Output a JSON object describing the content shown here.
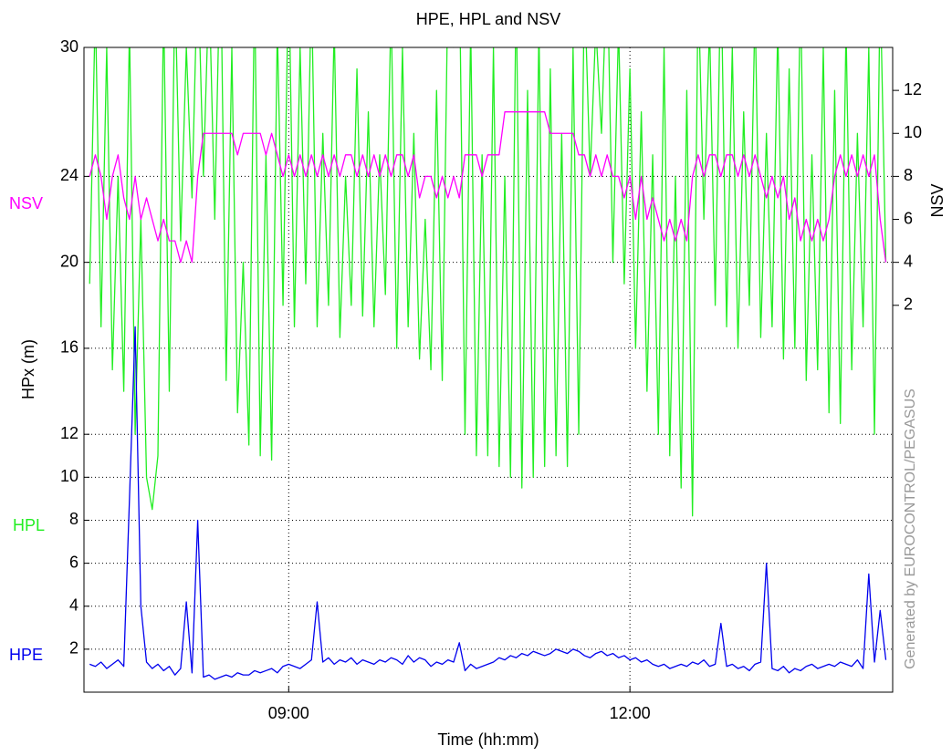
{
  "chart_data": {
    "type": "line",
    "title": "HPE, HPL and NSV",
    "xlabel": "Time (hh:mm)",
    "ylabel": "HPx  (m)",
    "y2label": "NSV",
    "annotation": "Generated by EUROCONTROL/PEGASUS",
    "xlim": [
      7.2,
      14.31
    ],
    "xticks": [
      {
        "value": 9,
        "label": "09:00"
      },
      {
        "value": 12,
        "label": "12:00"
      }
    ],
    "ylim": [
      0,
      30
    ],
    "yticks": [
      2,
      4,
      6,
      8,
      10,
      12,
      16,
      20,
      24,
      30
    ],
    "y2lim": [
      -16,
      14
    ],
    "y2ticks": [
      2,
      4,
      6,
      8,
      10,
      12
    ],
    "grid": true,
    "x": [
      7.25,
      7.3,
      7.35,
      7.4,
      7.45,
      7.5,
      7.55,
      7.6,
      7.65,
      7.7,
      7.75,
      7.8,
      7.85,
      7.9,
      7.95,
      8.0,
      8.05,
      8.1,
      8.15,
      8.2,
      8.25,
      8.3,
      8.35,
      8.4,
      8.45,
      8.5,
      8.55,
      8.6,
      8.65,
      8.7,
      8.75,
      8.8,
      8.85,
      8.9,
      8.95,
      9.0,
      9.05,
      9.1,
      9.15,
      9.2,
      9.25,
      9.3,
      9.35,
      9.4,
      9.45,
      9.5,
      9.55,
      9.6,
      9.65,
      9.7,
      9.75,
      9.8,
      9.85,
      9.9,
      9.95,
      10.0,
      10.05,
      10.1,
      10.15,
      10.2,
      10.25,
      10.3,
      10.35,
      10.4,
      10.45,
      10.5,
      10.55,
      10.6,
      10.65,
      10.7,
      10.75,
      10.8,
      10.85,
      10.9,
      10.95,
      11.0,
      11.05,
      11.1,
      11.15,
      11.2,
      11.25,
      11.3,
      11.35,
      11.4,
      11.45,
      11.5,
      11.55,
      11.6,
      11.65,
      11.7,
      11.75,
      11.8,
      11.85,
      11.9,
      11.95,
      12.0,
      12.05,
      12.1,
      12.15,
      12.2,
      12.25,
      12.3,
      12.35,
      12.4,
      12.45,
      12.5,
      12.55,
      12.6,
      12.65,
      12.7,
      12.75,
      12.8,
      12.85,
      12.9,
      12.95,
      13.0,
      13.05,
      13.1,
      13.15,
      13.2,
      13.25,
      13.3,
      13.35,
      13.4,
      13.45,
      13.5,
      13.55,
      13.6,
      13.65,
      13.7,
      13.75,
      13.8,
      13.85,
      13.9,
      13.95,
      14.0,
      14.05,
      14.1,
      14.15,
      14.2,
      14.25
    ],
    "series": [
      {
        "name": "HPL",
        "color": "#22ee22",
        "values": [
          19,
          32,
          17,
          30,
          15,
          24,
          14,
          31,
          12,
          22,
          10,
          8.5,
          11,
          32,
          14,
          33,
          21,
          30,
          23,
          34,
          24,
          33,
          22,
          35,
          14.5,
          30,
          13,
          20,
          11.5,
          33,
          11,
          25,
          10.8,
          31,
          18,
          34,
          17,
          30,
          19,
          33,
          17,
          26,
          18,
          31,
          16.5,
          24,
          18,
          29,
          17.5,
          27,
          17,
          25,
          18.5,
          32,
          16,
          30,
          17,
          26,
          15.5,
          22,
          15,
          28,
          14.5,
          33,
          30,
          34,
          12,
          31,
          11,
          25,
          11,
          30,
          10.5,
          24,
          10,
          33,
          9.5,
          28,
          10,
          31,
          10.5,
          29,
          11,
          26,
          10.5,
          30,
          12,
          33,
          24,
          31,
          26,
          34,
          20,
          31,
          19,
          29,
          16,
          27,
          14,
          25,
          12,
          30,
          11,
          24,
          9.5,
          28,
          8.2,
          33,
          22,
          31,
          18,
          34,
          17,
          30,
          16,
          27,
          18,
          32,
          16.5,
          26,
          17,
          31,
          15.5,
          29,
          16,
          33,
          14.5,
          25,
          15,
          30,
          13,
          28,
          12.5,
          31,
          15,
          26,
          17,
          30,
          12,
          33,
          20
        ]
      },
      {
        "name": "NSV",
        "color": "#ff00ff",
        "axis": "y2",
        "values": [
          8,
          9,
          8,
          6,
          8,
          9,
          7,
          6,
          8,
          6,
          7,
          6,
          5,
          6,
          5,
          5,
          4,
          5,
          4,
          8,
          10,
          10,
          10,
          10,
          10,
          10,
          9,
          10,
          10,
          10,
          10,
          9,
          10,
          9,
          8,
          9,
          8,
          9,
          8,
          9,
          8,
          9,
          8,
          9,
          8,
          9,
          9,
          8,
          9,
          8,
          9,
          8,
          9,
          8,
          9,
          9,
          8,
          9,
          7,
          8,
          8,
          7,
          8,
          7,
          8,
          7,
          9,
          9,
          9,
          8,
          9,
          9,
          9,
          11,
          11,
          11,
          11,
          11,
          11,
          11,
          11,
          10,
          10,
          10,
          10,
          10,
          9,
          9,
          8,
          9,
          8,
          9,
          8,
          8,
          7,
          8,
          6,
          8,
          6,
          7,
          6,
          5,
          6,
          5,
          6,
          5,
          8,
          9,
          8,
          9,
          9,
          8,
          9,
          9,
          8,
          9,
          8,
          9,
          8,
          7,
          8,
          7,
          8,
          6,
          7,
          5,
          6,
          5,
          6,
          5,
          6,
          8,
          9,
          8,
          9,
          8,
          9,
          8,
          9,
          6,
          4
        ]
      },
      {
        "name": "HPE",
        "color": "#0000ee",
        "values": [
          1.3,
          1.2,
          1.4,
          1.1,
          1.3,
          1.5,
          1.2,
          9,
          17,
          4,
          1.4,
          1.1,
          1.3,
          1.0,
          1.2,
          0.8,
          1.1,
          4.2,
          0.9,
          8,
          0.7,
          0.8,
          0.6,
          0.7,
          0.8,
          0.7,
          0.9,
          0.8,
          0.8,
          1.0,
          0.9,
          1.0,
          1.1,
          0.9,
          1.2,
          1.3,
          1.2,
          1.1,
          1.3,
          1.5,
          4.2,
          1.4,
          1.6,
          1.3,
          1.5,
          1.4,
          1.6,
          1.3,
          1.5,
          1.4,
          1.3,
          1.5,
          1.4,
          1.6,
          1.5,
          1.3,
          1.7,
          1.4,
          1.6,
          1.5,
          1.2,
          1.4,
          1.3,
          1.5,
          1.4,
          2.3,
          1.0,
          1.3,
          1.1,
          1.2,
          1.3,
          1.4,
          1.6,
          1.5,
          1.7,
          1.6,
          1.8,
          1.7,
          1.9,
          1.8,
          1.7,
          1.8,
          2.0,
          1.9,
          1.8,
          2.0,
          1.9,
          1.7,
          1.6,
          1.8,
          1.9,
          1.7,
          1.8,
          1.6,
          1.7,
          1.5,
          1.6,
          1.4,
          1.5,
          1.3,
          1.2,
          1.3,
          1.1,
          1.2,
          1.3,
          1.2,
          1.4,
          1.3,
          1.5,
          1.2,
          1.3,
          3.2,
          1.2,
          1.3,
          1.1,
          1.2,
          1.0,
          1.3,
          1.4,
          6,
          1.1,
          1.0,
          1.2,
          0.9,
          1.1,
          1.0,
          1.2,
          1.3,
          1.1,
          1.2,
          1.3,
          1.2,
          1.4,
          1.3,
          1.2,
          1.5,
          1.1,
          5.5,
          1.4,
          3.8,
          1.5
        ]
      }
    ]
  }
}
